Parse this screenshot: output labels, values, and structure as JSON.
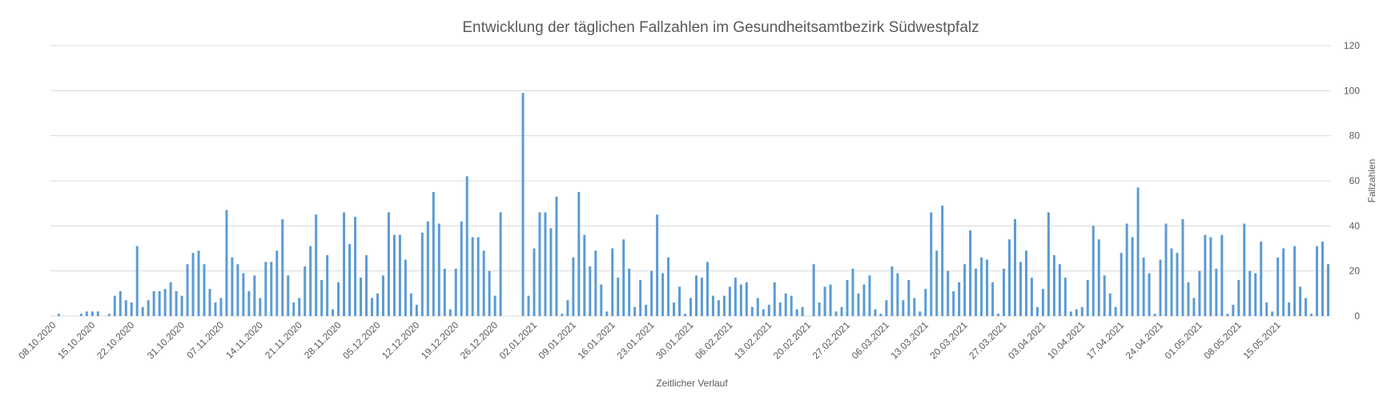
{
  "chart_data": {
    "type": "bar",
    "title": "Entwicklung der täglichen Fallzahlen im Gesundheitsamtbezirk Südwestpfalz",
    "x_label": "Zeitlicher Verlauf",
    "y_label": "Fallzahlen",
    "color": "#5b9bd5",
    "grid": true,
    "y_axis_side": "right",
    "ylim": [
      0,
      120
    ],
    "yticks": [
      0,
      20,
      40,
      60,
      80,
      100,
      120
    ],
    "categories": [
      "08.10.2020",
      null,
      null,
      null,
      null,
      null,
      null,
      "15.10.2020",
      null,
      null,
      null,
      null,
      null,
      null,
      "22.10.2020",
      null,
      null,
      null,
      null,
      null,
      null,
      null,
      null,
      "31.10.2020",
      null,
      null,
      null,
      null,
      null,
      null,
      "07.11.2020",
      null,
      null,
      null,
      null,
      null,
      null,
      "14.11.2020",
      null,
      null,
      null,
      null,
      null,
      null,
      "21.11.2020",
      null,
      null,
      null,
      null,
      null,
      null,
      "28.11.2020",
      null,
      null,
      null,
      null,
      null,
      null,
      "05.12.2020",
      null,
      null,
      null,
      null,
      null,
      null,
      "12.12.2020",
      null,
      null,
      null,
      null,
      null,
      null,
      "19.12.2020",
      null,
      null,
      null,
      null,
      null,
      null,
      "26.12.2020",
      null,
      null,
      null,
      null,
      null,
      null,
      "02.01.2021",
      null,
      null,
      null,
      null,
      null,
      null,
      "09.01.2021",
      null,
      null,
      null,
      null,
      null,
      null,
      "16.01.2021",
      null,
      null,
      null,
      null,
      null,
      null,
      "23.01.2021",
      null,
      null,
      null,
      null,
      null,
      null,
      "30.01.2021",
      null,
      null,
      null,
      null,
      null,
      null,
      "06.02.2021",
      null,
      null,
      null,
      null,
      null,
      null,
      "13.02.2021",
      null,
      null,
      null,
      null,
      null,
      null,
      "20.02.2021",
      null,
      null,
      null,
      null,
      null,
      null,
      "27.02.2021",
      null,
      null,
      null,
      null,
      null,
      null,
      "06.03.2021",
      null,
      null,
      null,
      null,
      null,
      null,
      "13.03.2021",
      null,
      null,
      null,
      null,
      null,
      null,
      "20.03.2021",
      null,
      null,
      null,
      null,
      null,
      null,
      "27.03.2021",
      null,
      null,
      null,
      null,
      null,
      null,
      "03.04.2021",
      null,
      null,
      null,
      null,
      null,
      null,
      "10.04.2021",
      null,
      null,
      null,
      null,
      null,
      null,
      "17.04.2021",
      null,
      null,
      null,
      null,
      null,
      null,
      "24.04.2021",
      null,
      null,
      null,
      null,
      null,
      null,
      "01.05.2021",
      null,
      null,
      null,
      null,
      null,
      null,
      "08.05.2021",
      null,
      null,
      null,
      null,
      null,
      null,
      "15.05.2021",
      null,
      null,
      null,
      null,
      null,
      null,
      null,
      null,
      null
    ],
    "values": [
      0,
      1,
      0,
      0,
      0,
      1,
      2,
      2,
      2,
      0,
      1,
      9,
      11,
      7,
      6,
      31,
      4,
      7,
      11,
      11,
      12,
      15,
      11,
      9,
      23,
      28,
      29,
      23,
      12,
      6,
      8,
      47,
      26,
      23,
      19,
      11,
      18,
      8,
      24,
      24,
      29,
      43,
      18,
      6,
      8,
      22,
      31,
      45,
      16,
      27,
      3,
      15,
      46,
      32,
      44,
      17,
      27,
      8,
      10,
      18,
      46,
      36,
      36,
      25,
      10,
      5,
      37,
      42,
      55,
      41,
      21,
      3,
      21,
      42,
      62,
      35,
      35,
      29,
      20,
      9,
      46,
      0,
      0,
      0,
      99,
      9,
      30,
      46,
      46,
      39,
      53,
      1,
      7,
      26,
      55,
      36,
      22,
      29,
      14,
      2,
      30,
      17,
      34,
      21,
      4,
      16,
      5,
      20,
      45,
      19,
      26,
      6,
      13,
      1,
      8,
      18,
      17,
      24,
      9,
      7,
      9,
      13,
      17,
      14,
      15,
      4,
      8,
      3,
      5,
      15,
      6,
      10,
      9,
      3,
      4,
      0,
      23,
      6,
      13,
      14,
      2,
      4,
      16,
      21,
      10,
      14,
      18,
      3,
      1,
      7,
      22,
      19,
      7,
      16,
      8,
      2,
      12,
      46,
      29,
      49,
      20,
      11,
      15,
      23,
      38,
      21,
      26,
      25,
      15,
      1,
      21,
      34,
      43,
      24,
      29,
      17,
      4,
      12,
      46,
      27,
      23,
      17,
      2,
      3,
      4,
      16,
      40,
      34,
      18,
      10,
      4,
      28,
      41,
      35,
      57,
      26,
      19,
      1,
      25,
      41,
      30,
      28,
      43,
      15,
      8,
      20,
      36,
      35,
      21,
      36,
      1,
      5,
      16,
      41,
      20,
      19,
      33,
      6,
      2,
      26,
      30,
      6,
      31,
      13,
      8,
      1,
      31,
      33,
      23
    ]
  }
}
